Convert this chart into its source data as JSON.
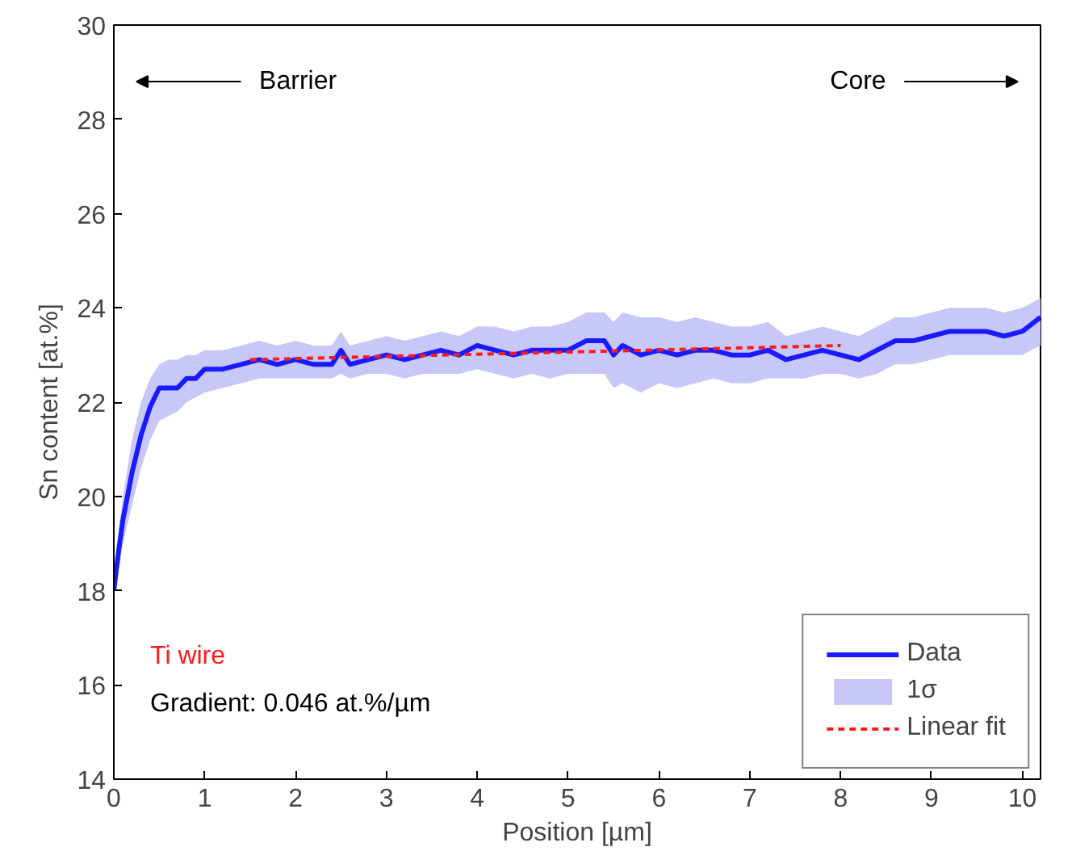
{
  "chart_data": {
    "type": "line",
    "xlabel": "Position [µm]",
    "ylabel": "Sn content [at.%]",
    "xlim": [
      0,
      10.2
    ],
    "ylim": [
      14,
      30
    ],
    "xticks": [
      0,
      1,
      2,
      3,
      4,
      5,
      6,
      7,
      8,
      9,
      10
    ],
    "yticks": [
      14,
      16,
      18,
      20,
      22,
      24,
      26,
      28,
      30
    ],
    "legend": "bottom right",
    "grid": false,
    "annotations": [
      "Barrier",
      "Core",
      "Ti wire",
      "Gradient: 0.046 at.%/µm"
    ],
    "series": [
      {
        "name": "Data",
        "color": "#1a1aff",
        "x": [
          0,
          0.05,
          0.1,
          0.2,
          0.3,
          0.4,
          0.5,
          0.6,
          0.7,
          0.8,
          0.9,
          1.0,
          1.2,
          1.4,
          1.6,
          1.8,
          2.0,
          2.2,
          2.4,
          2.5,
          2.6,
          2.8,
          3.0,
          3.2,
          3.4,
          3.6,
          3.8,
          4.0,
          4.2,
          4.4,
          4.6,
          4.8,
          5.0,
          5.2,
          5.4,
          5.5,
          5.6,
          5.8,
          6.0,
          6.2,
          6.4,
          6.6,
          6.8,
          7.0,
          7.2,
          7.4,
          7.6,
          7.8,
          8.0,
          8.2,
          8.4,
          8.6,
          8.8,
          9.0,
          9.2,
          9.4,
          9.6,
          9.8,
          10.0,
          10.2
        ],
        "values": [
          18.0,
          18.8,
          19.5,
          20.5,
          21.3,
          21.9,
          22.3,
          22.3,
          22.3,
          22.5,
          22.5,
          22.7,
          22.7,
          22.8,
          22.9,
          22.8,
          22.9,
          22.8,
          22.8,
          23.1,
          22.8,
          22.9,
          23.0,
          22.9,
          23.0,
          23.1,
          23.0,
          23.2,
          23.1,
          23.0,
          23.1,
          23.1,
          23.1,
          23.3,
          23.3,
          23.0,
          23.2,
          23.0,
          23.1,
          23.0,
          23.1,
          23.1,
          23.0,
          23.0,
          23.1,
          22.9,
          23.0,
          23.1,
          23.0,
          22.9,
          23.1,
          23.3,
          23.3,
          23.4,
          23.5,
          23.5,
          23.5,
          23.4,
          23.5,
          23.8
        ],
        "lower": [
          17.9,
          18.4,
          19.0,
          19.8,
          20.6,
          21.2,
          21.6,
          21.7,
          21.8,
          22.0,
          22.1,
          22.2,
          22.3,
          22.4,
          22.5,
          22.5,
          22.5,
          22.5,
          22.5,
          22.6,
          22.5,
          22.6,
          22.6,
          22.5,
          22.6,
          22.6,
          22.6,
          22.7,
          22.6,
          22.5,
          22.6,
          22.5,
          22.6,
          22.6,
          22.6,
          22.3,
          22.4,
          22.2,
          22.4,
          22.3,
          22.4,
          22.5,
          22.4,
          22.4,
          22.5,
          22.5,
          22.5,
          22.6,
          22.6,
          22.5,
          22.6,
          22.8,
          22.8,
          22.9,
          23.0,
          23.0,
          23.0,
          23.0,
          23.0,
          23.2
        ],
        "upper": [
          18.1,
          19.2,
          20.0,
          21.2,
          22.0,
          22.5,
          22.8,
          22.9,
          22.9,
          23.0,
          23.0,
          23.1,
          23.1,
          23.2,
          23.3,
          23.2,
          23.3,
          23.2,
          23.2,
          23.5,
          23.2,
          23.3,
          23.4,
          23.3,
          23.4,
          23.5,
          23.4,
          23.6,
          23.6,
          23.5,
          23.6,
          23.6,
          23.7,
          23.9,
          23.9,
          23.7,
          23.9,
          23.8,
          23.8,
          23.7,
          23.8,
          23.7,
          23.6,
          23.6,
          23.7,
          23.4,
          23.5,
          23.6,
          23.5,
          23.4,
          23.6,
          23.8,
          23.8,
          23.9,
          24.0,
          24.0,
          24.0,
          23.9,
          24.0,
          24.2
        ]
      },
      {
        "name": "1σ",
        "type": "area",
        "color": "#c8c8f8"
      },
      {
        "name": "Linear fit",
        "color": "#ff1a1a",
        "line_style": "dashed",
        "x": [
          1.5,
          8.0
        ],
        "values": [
          22.9,
          23.2
        ]
      }
    ]
  }
}
